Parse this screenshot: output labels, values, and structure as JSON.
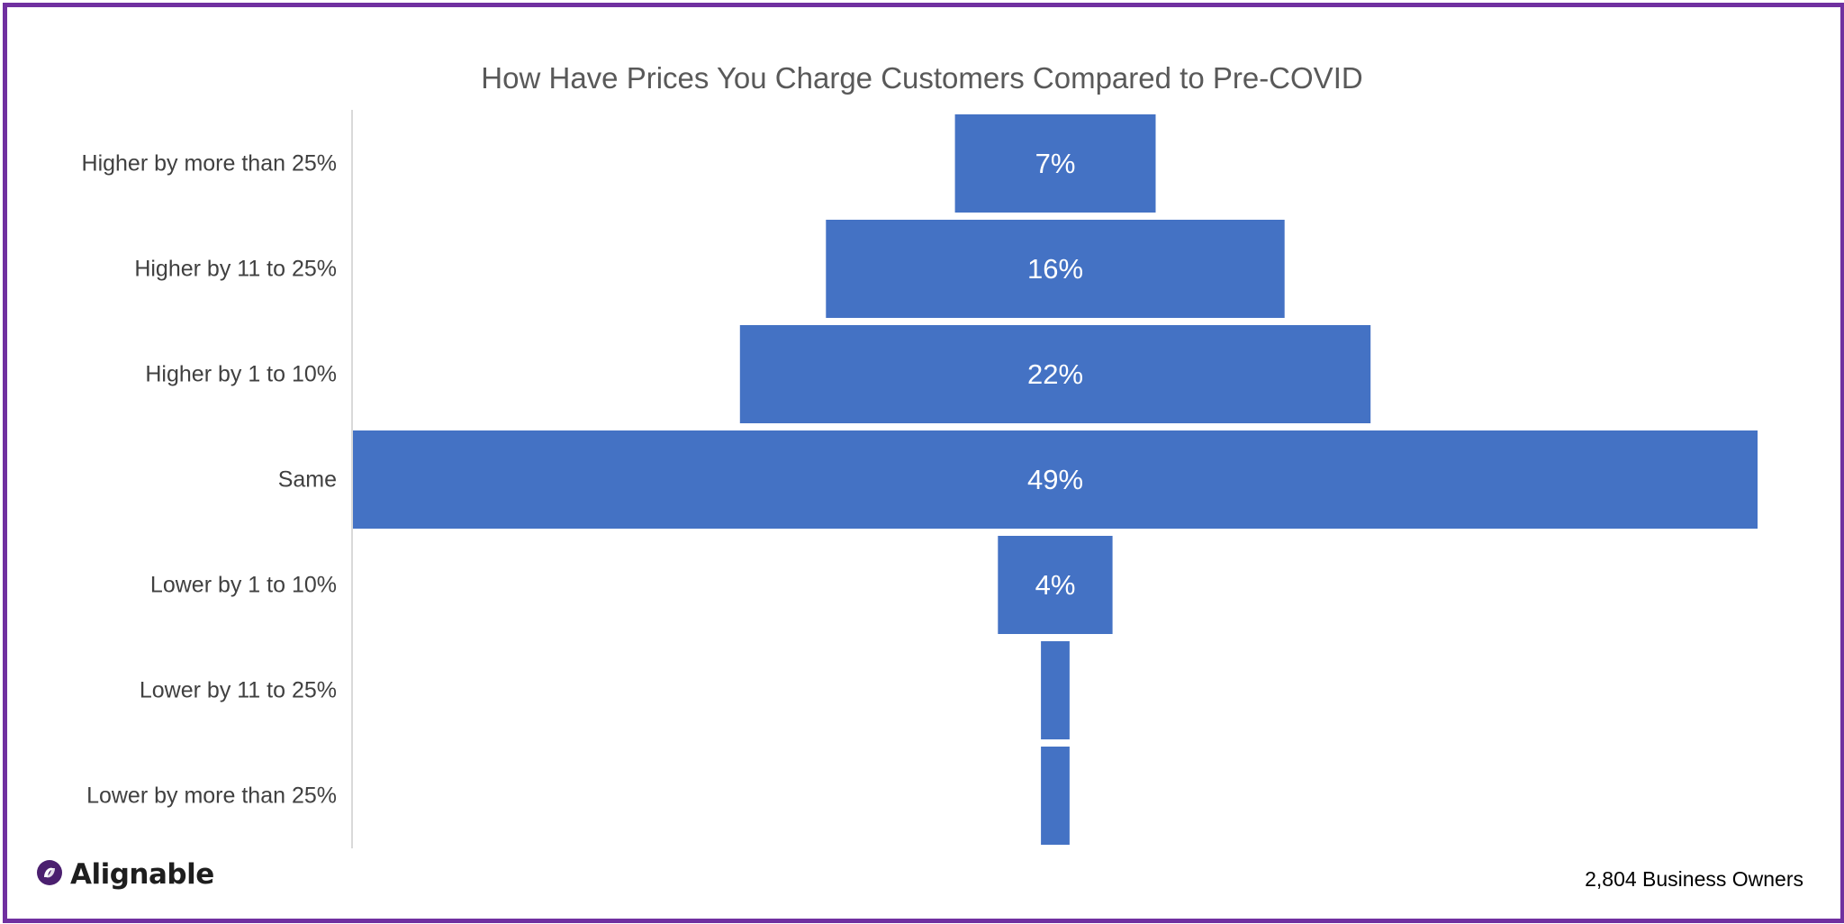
{
  "brand": {
    "name": "Alignable",
    "logo_color": "#4b1f6f"
  },
  "colors": {
    "frame": "#7030a0",
    "bar": "#4472c4",
    "bar_label": "#ffffff"
  },
  "footer": {
    "sample": "2,804 Business Owners"
  },
  "chart_data": {
    "type": "bar",
    "orientation": "horizontal",
    "style": "funnel (bars centered)",
    "title": "How Have Prices You Charge Customers Compared to Pre-COVID",
    "xlabel": "",
    "ylabel": "",
    "categories": [
      "Higher by more than 25%",
      "Higher by 11 to 25%",
      "Higher by 1 to 10%",
      "Same",
      "Lower by 1 to 10%",
      "Lower by 11 to 25%",
      "Lower by more than 25%"
    ],
    "values": [
      7,
      16,
      22,
      49,
      4,
      1,
      1
    ],
    "data_labels": [
      "7%",
      "16%",
      "22%",
      "49%",
      "4%",
      "",
      ""
    ],
    "unit": "%",
    "xlim": [
      0,
      50
    ],
    "grid": false,
    "legend": "none"
  }
}
